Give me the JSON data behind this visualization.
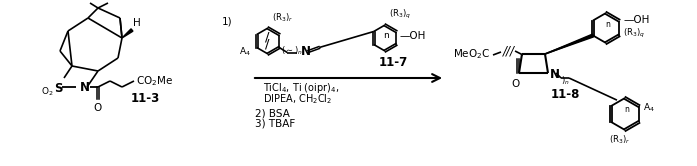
{
  "bg_color": "#ffffff",
  "fig_width": 6.97,
  "fig_height": 1.66,
  "dpi": 100,
  "compound_113_label": "11-3",
  "compound_117_label": "11-7",
  "compound_118_label": "11-8",
  "reagents_line1": "TiCl$_4$, Ti (oipr)$_4$,",
  "reagents_line2": "DIPEA, CH$_2$Cl$_2$",
  "reagents_line3": "2) BSA",
  "reagents_line4": "3) TBAF",
  "step1_label": "1)",
  "text_color": "#000000",
  "font_size": 7.5
}
